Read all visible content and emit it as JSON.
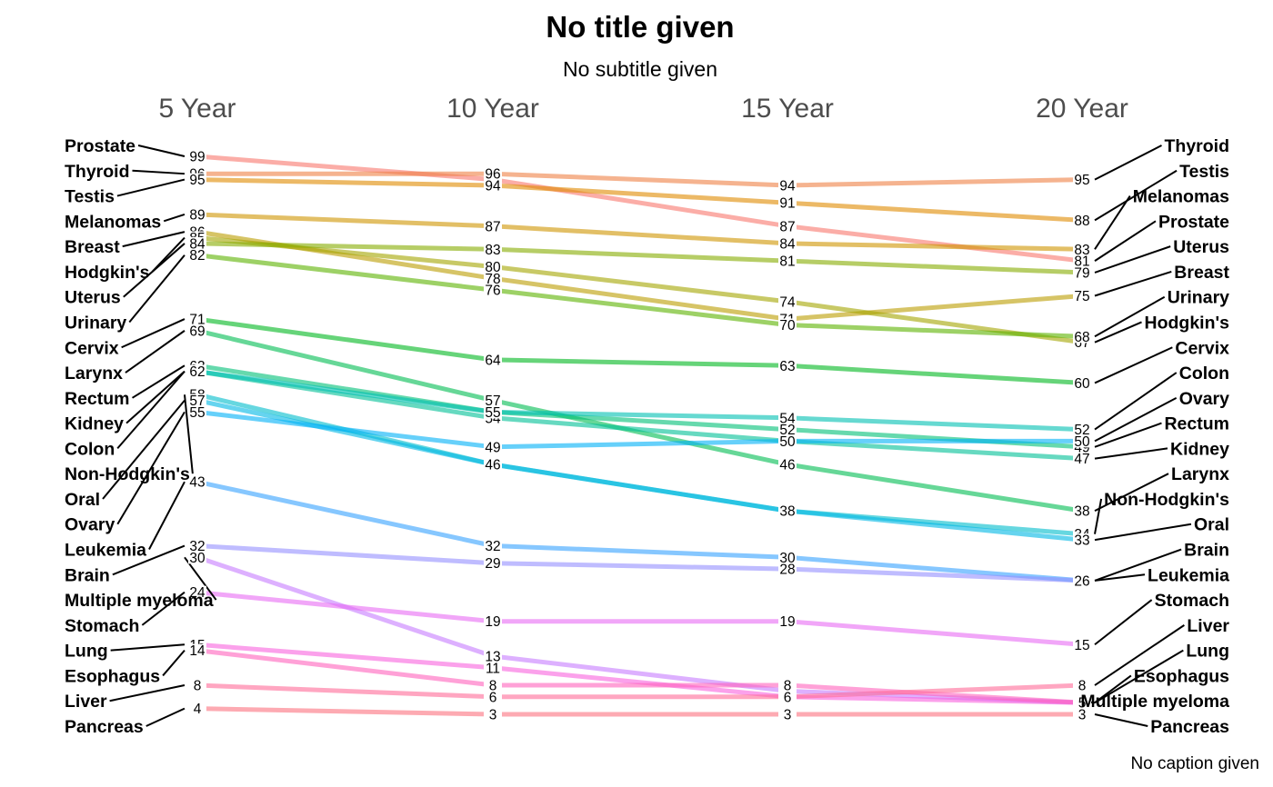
{
  "chart_data": {
    "type": "line",
    "title": "No title given",
    "subtitle": "No subtitle given",
    "caption": "No caption given",
    "x": [
      "5 Year",
      "10 Year",
      "15 Year",
      "20 Year"
    ],
    "ylim": [
      3,
      99
    ],
    "grid": false,
    "legend": "none",
    "left_label_order": [
      "Prostate",
      "Thyroid",
      "Testis",
      "Melanomas",
      "Breast",
      "Hodgkin's",
      "Uterus",
      "Urinary",
      "Cervix",
      "Larynx",
      "Rectum",
      "Kidney",
      "Colon",
      "Non-Hodgkin's",
      "Oral",
      "Ovary",
      "Leukemia",
      "Brain",
      "Multiple myeloma",
      "Stomach",
      "Lung",
      "Esophagus",
      "Liver",
      "Pancreas"
    ],
    "right_label_order": [
      "Thyroid",
      "Testis",
      "Melanomas",
      "Prostate",
      "Uterus",
      "Breast",
      "Urinary",
      "Hodgkin's",
      "Cervix",
      "Colon",
      "Ovary",
      "Rectum",
      "Kidney",
      "Larynx",
      "Non-Hodgkin's",
      "Oral",
      "Brain",
      "Leukemia",
      "Stomach",
      "Liver",
      "Lung",
      "Esophagus",
      "Multiple myeloma",
      "Pancreas"
    ],
    "series": [
      {
        "name": "Prostate",
        "values": [
          99,
          95,
          87,
          81
        ],
        "color": "#F8766D"
      },
      {
        "name": "Thyroid",
        "values": [
          96,
          96,
          94,
          95
        ],
        "color": "#EE8044"
      },
      {
        "name": "Testis",
        "values": [
          95,
          94,
          91,
          88
        ],
        "color": "#E08B00"
      },
      {
        "name": "Melanomas",
        "values": [
          89,
          87,
          84,
          83
        ],
        "color": "#CF9400"
      },
      {
        "name": "Breast",
        "values": [
          86,
          78,
          71,
          75
        ],
        "color": "#BB9D00"
      },
      {
        "name": "Hodgkin's",
        "values": [
          85,
          80,
          74,
          67
        ],
        "color": "#A3A500"
      },
      {
        "name": "Uterus",
        "values": [
          84,
          83,
          81,
          79
        ],
        "color": "#86AC00"
      },
      {
        "name": "Urinary",
        "values": [
          82,
          76,
          70,
          68
        ],
        "color": "#5BB300"
      },
      {
        "name": "Cervix",
        "values": [
          71,
          64,
          63,
          60
        ],
        "color": "#00B81F"
      },
      {
        "name": "Larynx",
        "values": [
          69,
          57,
          46,
          38
        ],
        "color": "#00BC51"
      },
      {
        "name": "Rectum",
        "values": [
          63,
          55,
          52,
          49
        ],
        "color": "#00BF76"
      },
      {
        "name": "Kidney",
        "values": [
          62,
          54,
          50,
          47
        ],
        "color": "#00C096"
      },
      {
        "name": "Colon",
        "values": [
          62,
          55,
          54,
          52
        ],
        "color": "#00C0B2"
      },
      {
        "name": "Non-Hodgkin's",
        "values": [
          58,
          46,
          38,
          34
        ],
        "color": "#00BDCC"
      },
      {
        "name": "Oral",
        "values": [
          57,
          46,
          38,
          33
        ],
        "color": "#00B8E5"
      },
      {
        "name": "Ovary",
        "values": [
          55,
          49,
          50,
          50
        ],
        "color": "#00B0F6"
      },
      {
        "name": "Leukemia",
        "values": [
          43,
          32,
          30,
          26
        ],
        "color": "#35A2FF"
      },
      {
        "name": "Brain",
        "values": [
          32,
          29,
          28,
          26
        ],
        "color": "#9590FF"
      },
      {
        "name": "Multiple myeloma",
        "values": [
          30,
          13,
          7,
          5
        ],
        "color": "#C77CFF"
      },
      {
        "name": "Stomach",
        "values": [
          24,
          19,
          19,
          15
        ],
        "color": "#E76BF3"
      },
      {
        "name": "Lung",
        "values": [
          15,
          11,
          6,
          5
        ],
        "color": "#F962DD"
      },
      {
        "name": "Esophagus",
        "values": [
          14,
          8,
          8,
          5
        ],
        "color": "#FF62BC"
      },
      {
        "name": "Liver",
        "values": [
          8,
          6,
          6,
          8
        ],
        "color": "#FF6A98"
      },
      {
        "name": "Pancreas",
        "values": [
          4,
          3,
          3,
          3
        ],
        "color": "#FC717F"
      }
    ]
  }
}
